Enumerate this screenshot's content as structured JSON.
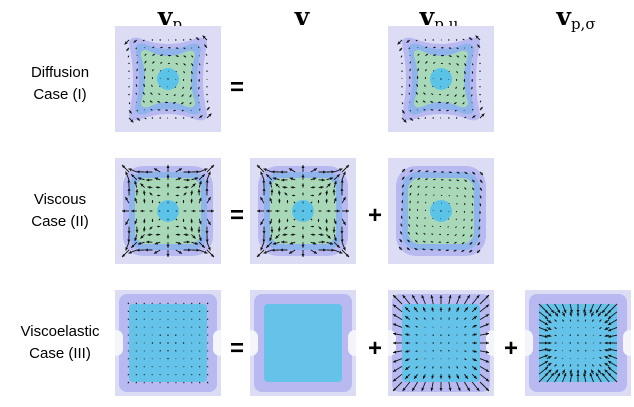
{
  "headers": {
    "vp": {
      "main": "v",
      "sub": "p"
    },
    "v": {
      "main": "v",
      "sub": ""
    },
    "vpmu": {
      "main": "v",
      "sub": "p,μ"
    },
    "vpsigma": {
      "main": "v",
      "sub": "p,σ"
    }
  },
  "rows": [
    {
      "line1": "Diffusion",
      "line2": "Case (I)",
      "ops": [
        "="
      ]
    },
    {
      "line1": "Viscous",
      "line2": "Case (II)",
      "ops": [
        "=",
        "+"
      ]
    },
    {
      "line1": "Viscoelastic",
      "line2": "Case (III)",
      "ops": [
        "=",
        "+",
        "+"
      ]
    }
  ],
  "colors": {
    "panel_bg": "#dcdcf4",
    "outer_field": "#b7b9f0",
    "mid_field": "#8fb4ec",
    "inner_field": "#7fd6d9",
    "green_field": "#a9d8b8",
    "center_blob": "#5cc3e8",
    "arrow": "#111111"
  }
}
